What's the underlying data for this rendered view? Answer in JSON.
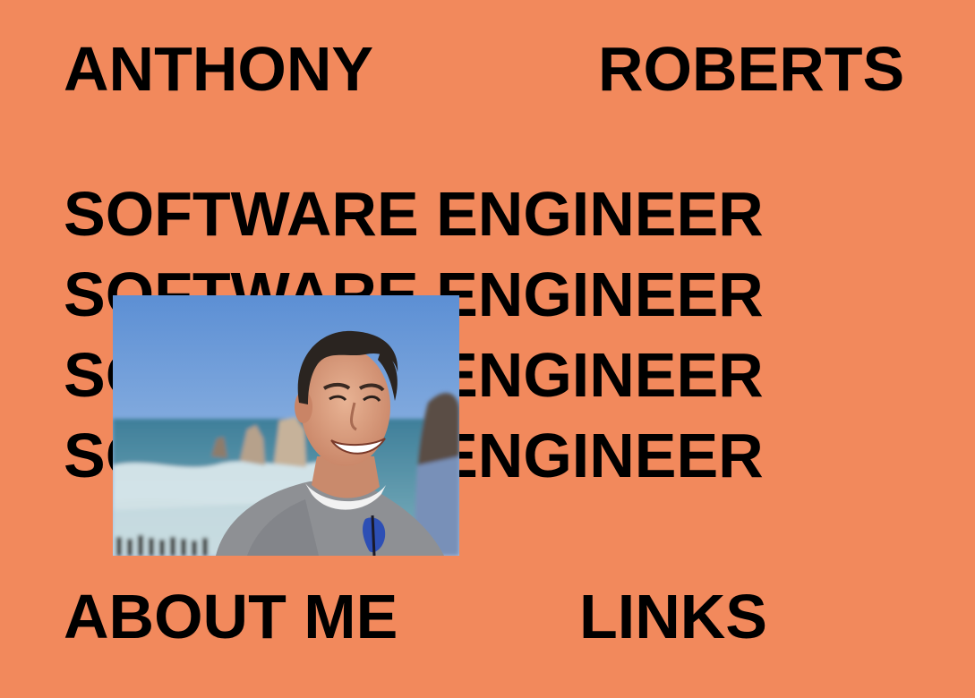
{
  "header": {
    "first_name": "ANTHONY",
    "last_name": "ROBERTS"
  },
  "roles": [
    "SOFTWARE ENGINEER",
    "SOFTWARE ENGINEER",
    "SOFTWARE ENGINEER",
    "SOFTWARE ENGINEER"
  ],
  "nav": {
    "about_label": "ABOUT ME",
    "links_label": "LINKS"
  },
  "photo": {
    "alt": "Portrait photo",
    "icon": "portrait-photo"
  },
  "colors": {
    "background": "#F2895C",
    "text": "#000000"
  }
}
